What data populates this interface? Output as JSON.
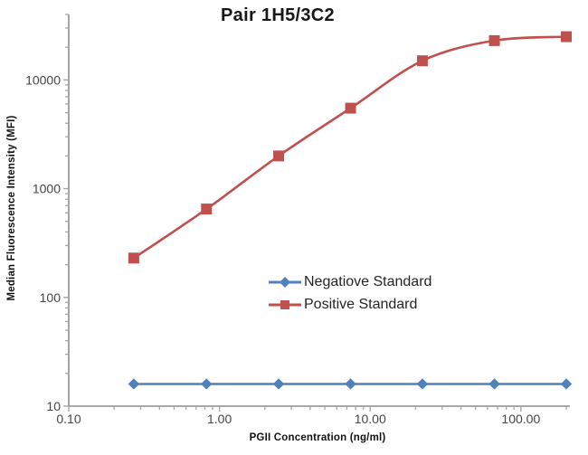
{
  "chart_data": {
    "type": "line",
    "title": "Pair 1H5/3C2",
    "xlabel": "PGII Concentration (ng/ml)",
    "ylabel": "Median Fluorescence Intensity (MFI)",
    "x_scale": "log",
    "y_scale": "log",
    "grid": false,
    "legend_position": "inside-lower-center",
    "x_axis": {
      "min": 0.1,
      "max": 200,
      "major_ticks": [
        0.1,
        1,
        10,
        100
      ],
      "tick_labels": [
        "0.10",
        "1.00",
        "10.00",
        "100.00"
      ]
    },
    "y_axis": {
      "min": 10,
      "max": 40000,
      "major_ticks": [
        10,
        100,
        1000,
        10000
      ],
      "tick_labels": [
        "10",
        "100",
        "1000",
        "10000"
      ]
    },
    "x": [
      0.27,
      0.82,
      2.47,
      7.41,
      22.2,
      66.7,
      200
    ],
    "series": [
      {
        "name": "Negatiove Standard",
        "color": "#4F81BD",
        "marker": "diamond",
        "smooth": false,
        "values": [
          16,
          16,
          16,
          16,
          16,
          16,
          16
        ]
      },
      {
        "name": "Positive Standard",
        "color": "#C0504D",
        "marker": "square",
        "smooth": true,
        "values": [
          230,
          650,
          2000,
          5500,
          15000,
          23000,
          25000
        ]
      }
    ],
    "axis_color": "#8C8C8C",
    "tick_color": "#A6A6A6",
    "tick_label_color": "#444444"
  }
}
